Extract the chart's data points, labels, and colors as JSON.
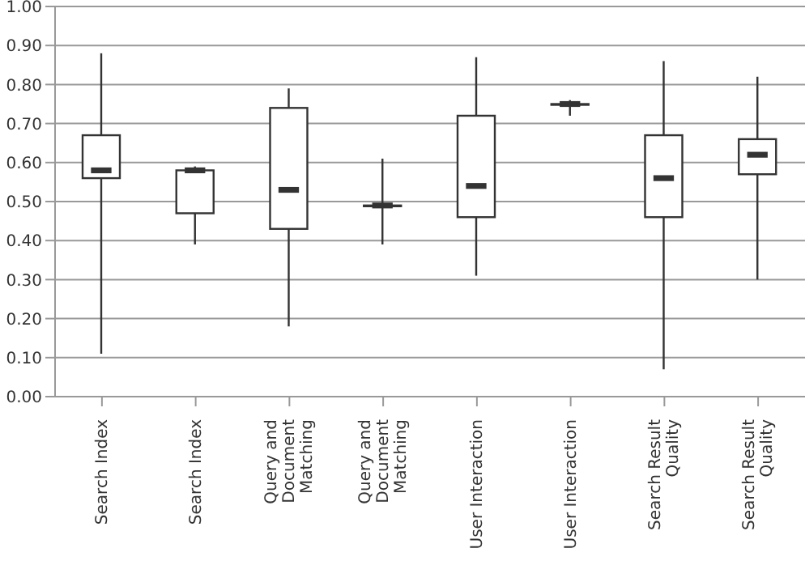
{
  "chart_data": {
    "type": "box",
    "categories": [
      "Search Index",
      "Search Index",
      "Query and Document Matching",
      "Query and Document Matching",
      "User Interaction",
      "User Interaction",
      "Search Result Quality",
      "Search Result Quality"
    ],
    "boxes": [
      {
        "low": 0.11,
        "q1": 0.56,
        "median": 0.58,
        "q3": 0.67,
        "high": 0.88
      },
      {
        "low": 0.39,
        "q1": 0.47,
        "median": 0.58,
        "q3": 0.58,
        "high": 0.59
      },
      {
        "low": 0.18,
        "q1": 0.43,
        "median": 0.53,
        "q3": 0.74,
        "high": 0.79
      },
      {
        "low": 0.39,
        "q1": 0.49,
        "median": 0.49,
        "q3": 0.49,
        "high": 0.61
      },
      {
        "low": 0.31,
        "q1": 0.46,
        "median": 0.54,
        "q3": 0.72,
        "high": 0.87
      },
      {
        "low": 0.72,
        "q1": 0.75,
        "median": 0.75,
        "q3": 0.75,
        "high": 0.76
      },
      {
        "low": 0.07,
        "q1": 0.46,
        "median": 0.56,
        "q3": 0.67,
        "high": 0.86
      },
      {
        "low": 0.3,
        "q1": 0.57,
        "median": 0.62,
        "q3": 0.66,
        "high": 0.82
      }
    ],
    "color": "#333333",
    "ylim": [
      0,
      1
    ],
    "yticks": [
      {
        "value": 0,
        "label": "0.00"
      },
      {
        "value": 0.1,
        "label": "0.10"
      },
      {
        "value": 0.2,
        "label": "0.20"
      },
      {
        "value": 0.3,
        "label": "0.30"
      },
      {
        "value": 0.4,
        "label": "0.40"
      },
      {
        "value": 0.5,
        "label": "0.50"
      },
      {
        "value": 0.6,
        "label": "0.60"
      },
      {
        "value": 0.7,
        "label": "0.70"
      },
      {
        "value": 0.8,
        "label": "0.80"
      },
      {
        "value": 0.9,
        "label": "0.90"
      },
      {
        "value": 1,
        "label": "1.00"
      }
    ],
    "grid": "y",
    "legend": false
  }
}
